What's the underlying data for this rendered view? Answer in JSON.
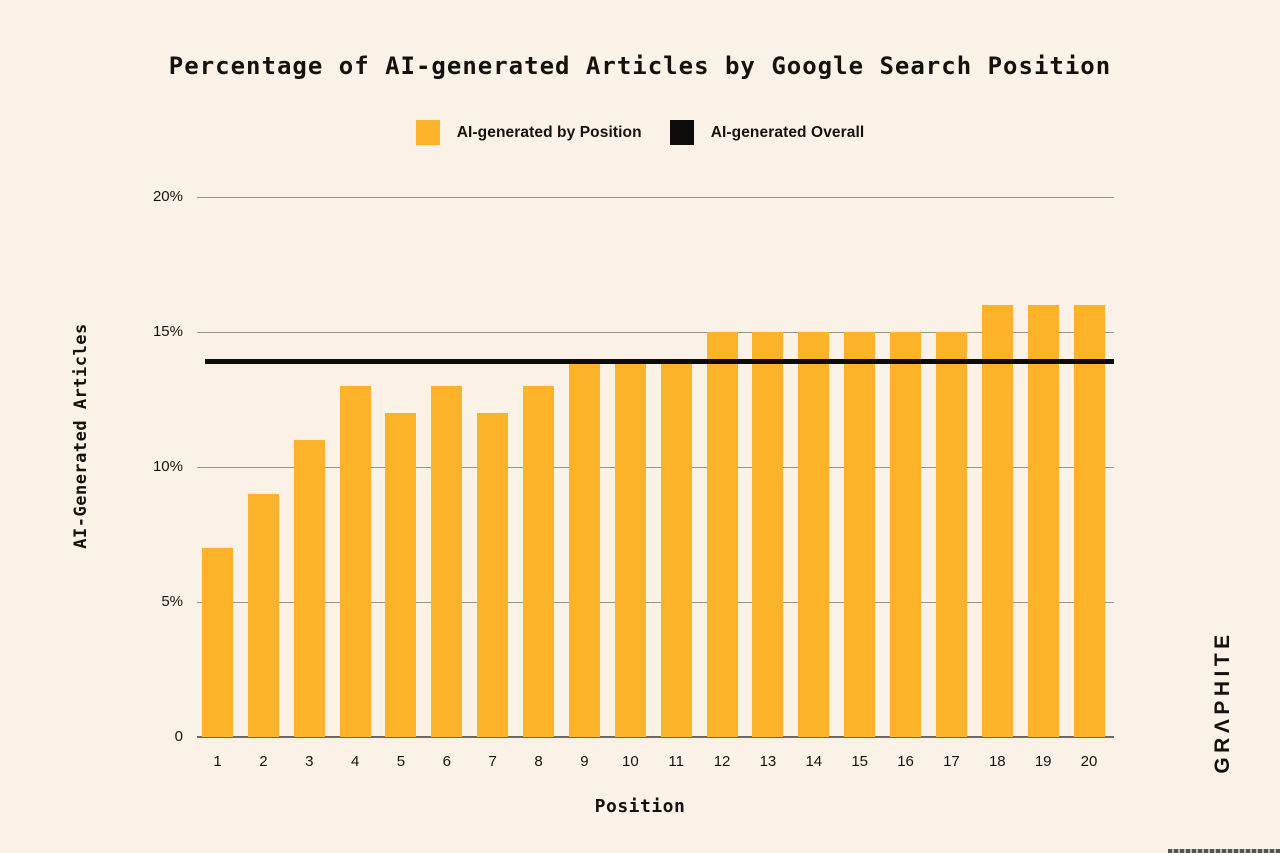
{
  "title": "Percentage of AI-generated Articles by Google Search Position",
  "legend": {
    "items": [
      {
        "label": "AI-generated by Position",
        "color": "#FCB32A",
        "swatch": "bar"
      },
      {
        "label": "AI-generated Overall",
        "color": "#0D0C0A",
        "swatch": "line"
      }
    ]
  },
  "logo": "GRΛPHITE",
  "chart_data": {
    "type": "bar",
    "title": "Percentage of AI-generated Articles by Google Search Position",
    "xlabel": "Position",
    "ylabel": "AI-Generated Articles",
    "categories": [
      "1",
      "2",
      "3",
      "4",
      "5",
      "6",
      "7",
      "8",
      "9",
      "10",
      "11",
      "12",
      "13",
      "14",
      "15",
      "16",
      "17",
      "18",
      "19",
      "20"
    ],
    "values": [
      7,
      9,
      11,
      13,
      12,
      13,
      12,
      13,
      14,
      14,
      14,
      15,
      15,
      15,
      15,
      15,
      15,
      16,
      16,
      16
    ],
    "series": [
      {
        "name": "AI-generated by Position",
        "type": "bar",
        "values": [
          7,
          9,
          11,
          13,
          12,
          13,
          12,
          13,
          14,
          14,
          14,
          15,
          15,
          15,
          15,
          15,
          15,
          16,
          16,
          16
        ]
      },
      {
        "name": "AI-generated Overall",
        "type": "reference-line",
        "value": 13.9
      }
    ],
    "overall_line_value": 13.9,
    "ylim": [
      0,
      20
    ],
    "yticks": [
      {
        "v": 0,
        "label": "0"
      },
      {
        "v": 5,
        "label": "5%"
      },
      {
        "v": 10,
        "label": "10%"
      },
      {
        "v": 15,
        "label": "15%"
      },
      {
        "v": 20,
        "label": "20%"
      }
    ],
    "grid": true,
    "legend_position": "top",
    "colors": {
      "bar": "#FCB32A",
      "line": "#0D0C0A",
      "grid": "#97948E",
      "axis": "#6E6A63",
      "background": "#FAF2E6",
      "text": "#14120F"
    }
  }
}
